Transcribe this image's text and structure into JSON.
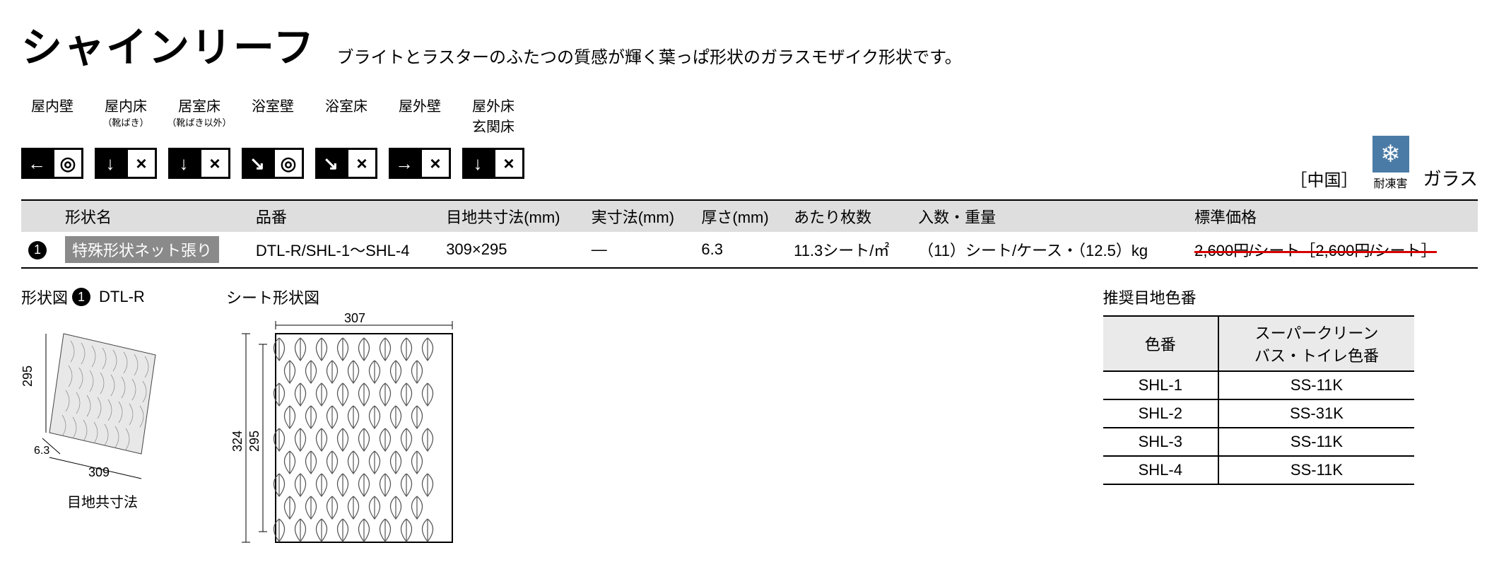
{
  "header": {
    "title": "シャインリーフ",
    "subtitle": "ブライトとラスターのふたつの質感が輝く葉っぱ形状のガラスモザイク形状です。"
  },
  "usage_categories": [
    {
      "label": "屋内壁",
      "sublabel": "",
      "sublabel2": ""
    },
    {
      "label": "屋内床",
      "sublabel": "（靴ばき）",
      "sublabel2": ""
    },
    {
      "label": "居室床",
      "sublabel": "（靴ばき以外）",
      "sublabel2": ""
    },
    {
      "label": "浴室壁",
      "sublabel": "",
      "sublabel2": ""
    },
    {
      "label": "浴室床",
      "sublabel": "",
      "sublabel2": ""
    },
    {
      "label": "屋外壁",
      "sublabel": "",
      "sublabel2": ""
    },
    {
      "label": "屋外床",
      "sublabel": "",
      "sublabel2": "玄関床"
    }
  ],
  "usage_icons": [
    {
      "left": "←",
      "right": "◎",
      "left_filled": true,
      "right_filled": false
    },
    {
      "left": "↓",
      "right": "×",
      "left_filled": true,
      "right_filled": false
    },
    {
      "left": "↓",
      "right": "×",
      "left_filled": true,
      "right_filled": false
    },
    {
      "left": "↘",
      "right": "◎",
      "left_filled": true,
      "right_filled": false
    },
    {
      "left": "↘",
      "right": "×",
      "left_filled": true,
      "right_filled": false
    },
    {
      "left": "→",
      "right": "×",
      "left_filled": true,
      "right_filled": false
    },
    {
      "left": "↓",
      "right": "×",
      "left_filled": true,
      "right_filled": false
    }
  ],
  "right_info": {
    "origin": "［中国］",
    "frost_label": "耐凍害",
    "material": "ガラス"
  },
  "spec_headers": {
    "shape_name": "形状名",
    "item_no": "品番",
    "joint_dim": "目地共寸法(mm)",
    "actual_dim": "実寸法(mm)",
    "thickness": "厚さ(mm)",
    "per_count": "あたり枚数",
    "qty_weight": "入数・重量",
    "price": "標準価格"
  },
  "spec_row": {
    "badge": "1",
    "shape_name": "特殊形状ネット張り",
    "item_no": "DTL-R/SHL-1～SHL-4",
    "joint_dim": "309×295",
    "actual_dim": "―",
    "thickness": "6.3",
    "per_count": "11.3シート/㎡",
    "qty_weight": "（11）シート/ケース・（12.5）kg",
    "price_strike": "2,600円/シート［2,600円/シート］"
  },
  "shape_fig": {
    "title_prefix": "形状図",
    "badge": "1",
    "code": "DTL-R",
    "dims": {
      "w": "309",
      "h": "295",
      "t": "6.3"
    },
    "caption": "目地共寸法"
  },
  "sheet_fig": {
    "title": "シート形状図",
    "dims": {
      "w": "307",
      "h_outer": "324",
      "h_inner": "295"
    }
  },
  "rec_table": {
    "title": "推奨目地色番",
    "headers": {
      "color_no": "色番",
      "joint_no": "スーパークリーン\nバス・トイレ色番"
    },
    "rows": [
      {
        "a": "SHL-1",
        "b": "SS-11K"
      },
      {
        "a": "SHL-2",
        "b": "SS-31K"
      },
      {
        "a": "SHL-3",
        "b": "SS-11K"
      },
      {
        "a": "SHL-4",
        "b": "SS-11K"
      }
    ]
  }
}
